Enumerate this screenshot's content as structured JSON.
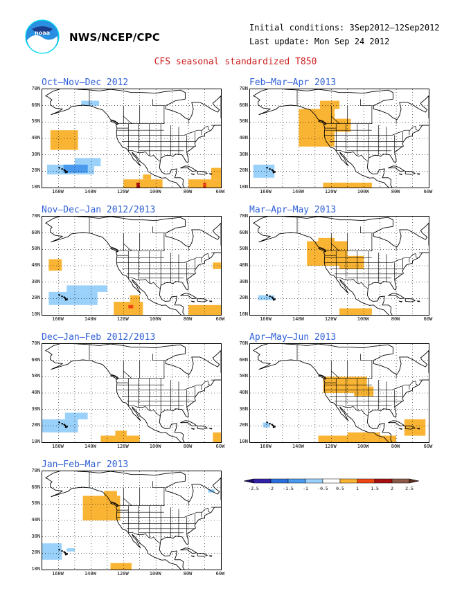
{
  "header": {
    "org": "NWS/NCEP/CPC",
    "initial_conditions": "Initial conditions: 3Sep2012–12Sep2012",
    "last_update": "Last update: Mon Sep 24 2012",
    "title": "CFS seasonal standardized T850",
    "logo_icon": "noaa-logo-icon",
    "title_color": "#cc2222",
    "panel_title_color": "#3060d8"
  },
  "axes": {
    "lat_labels": [
      "70N",
      "60N",
      "50N",
      "40N",
      "30N",
      "20N",
      "10N"
    ],
    "lon_labels": [
      "160W",
      "140W",
      "120W",
      "100W",
      "80W",
      "60W"
    ],
    "lon_range": [
      -170,
      -60
    ],
    "lat_range": [
      10,
      70
    ]
  },
  "panels": [
    {
      "title": "Oct–Nov–Dec 2012",
      "anoms": [
        {
          "lon": [
            -165,
            -148
          ],
          "lat": [
            33,
            45
          ],
          "level": 1
        },
        {
          "lon": [
            -167,
            -138
          ],
          "lat": [
            18,
            24
          ],
          "level": -1
        },
        {
          "lon": [
            -150,
            -134
          ],
          "lat": [
            23,
            28
          ],
          "level": -1
        },
        {
          "lon": [
            -157,
            -142
          ],
          "lat": [
            19,
            24
          ],
          "level": -1.5
        },
        {
          "lon": [
            -120,
            -96
          ],
          "lat": [
            10,
            15
          ],
          "level": 1
        },
        {
          "lon": [
            -108,
            -103
          ],
          "lat": [
            15,
            18
          ],
          "level": 1
        },
        {
          "lon": [
            -80,
            -60
          ],
          "lat": [
            10,
            15
          ],
          "level": 1
        },
        {
          "lon": [
            -66,
            -60
          ],
          "lat": [
            15,
            22
          ],
          "level": 1
        },
        {
          "lon": [
            -112,
            -110
          ],
          "lat": [
            10,
            13
          ],
          "level": 2
        },
        {
          "lon": [
            -71,
            -69
          ],
          "lat": [
            10,
            13
          ],
          "level": 1.5
        },
        {
          "lon": [
            -146,
            -135
          ],
          "lat": [
            60,
            63
          ],
          "level": -1
        }
      ]
    },
    {
      "title": "Feb–Mar–Apr 2013",
      "anoms": [
        {
          "lon": [
            -140,
            -118
          ],
          "lat": [
            35,
            58
          ],
          "level": 1
        },
        {
          "lon": [
            -127,
            -115
          ],
          "lat": [
            58,
            63
          ],
          "level": 1
        },
        {
          "lon": [
            -120,
            -108
          ],
          "lat": [
            44,
            52
          ],
          "level": 1
        },
        {
          "lon": [
            -168,
            -155
          ],
          "lat": [
            16,
            24
          ],
          "level": -1
        },
        {
          "lon": [
            -125,
            -95
          ],
          "lat": [
            10,
            13
          ],
          "level": 1
        }
      ]
    },
    {
      "title": "Nov–Dec–Jan 2012/2013",
      "anoms": [
        {
          "lon": [
            -166,
            -158
          ],
          "lat": [
            37,
            44
          ],
          "level": 1
        },
        {
          "lon": [
            -166,
            -136
          ],
          "lat": [
            16,
            24
          ],
          "level": -1
        },
        {
          "lon": [
            -155,
            -130
          ],
          "lat": [
            24,
            28
          ],
          "level": -1
        },
        {
          "lon": [
            -126,
            -108
          ],
          "lat": [
            10,
            18
          ],
          "level": 1
        },
        {
          "lon": [
            -116,
            -110
          ],
          "lat": [
            18,
            22
          ],
          "level": 1
        },
        {
          "lon": [
            -80,
            -60
          ],
          "lat": [
            10,
            16
          ],
          "level": 1
        },
        {
          "lon": [
            -65,
            -60
          ],
          "lat": [
            38,
            42
          ],
          "level": 1
        },
        {
          "lon": [
            -117,
            -114
          ],
          "lat": [
            14,
            16
          ],
          "level": 1.5
        }
      ]
    },
    {
      "title": "Mar–Apr–May 2013",
      "anoms": [
        {
          "lon": [
            -135,
            -110
          ],
          "lat": [
            40,
            55
          ],
          "level": 1
        },
        {
          "lon": [
            -115,
            -100
          ],
          "lat": [
            38,
            46
          ],
          "level": 1
        },
        {
          "lon": [
            -128,
            -118
          ],
          "lat": [
            54,
            57
          ],
          "level": 1
        },
        {
          "lon": [
            -165,
            -155
          ],
          "lat": [
            19,
            22
          ],
          "level": -1
        },
        {
          "lon": [
            -115,
            -95
          ],
          "lat": [
            10,
            14
          ],
          "level": 1
        }
      ]
    },
    {
      "title": "Dec–Jan–Feb 2012/2013",
      "anoms": [
        {
          "lon": [
            -170,
            -148
          ],
          "lat": [
            16,
            24
          ],
          "level": -1
        },
        {
          "lon": [
            -156,
            -142
          ],
          "lat": [
            24,
            28
          ],
          "level": -1
        },
        {
          "lon": [
            -134,
            -110
          ],
          "lat": [
            10,
            14
          ],
          "level": 1
        },
        {
          "lon": [
            -125,
            -118
          ],
          "lat": [
            14,
            17
          ],
          "level": 1
        },
        {
          "lon": [
            -65,
            -60
          ],
          "lat": [
            10,
            16
          ],
          "level": 1
        }
      ]
    },
    {
      "title": "Apr–May–Jun 2013",
      "anoms": [
        {
          "lon": [
            -125,
            -98
          ],
          "lat": [
            40,
            50
          ],
          "level": 1
        },
        {
          "lon": [
            -106,
            -94
          ],
          "lat": [
            38,
            44
          ],
          "level": 1
        },
        {
          "lon": [
            -128,
            -80
          ],
          "lat": [
            10,
            14
          ],
          "level": 1
        },
        {
          "lon": [
            -110,
            -90
          ],
          "lat": [
            14,
            16
          ],
          "level": 1
        },
        {
          "lon": [
            -75,
            -62
          ],
          "lat": [
            14,
            24
          ],
          "level": 1
        },
        {
          "lon": [
            -162,
            -158
          ],
          "lat": [
            19,
            22
          ],
          "level": -1
        }
      ]
    },
    {
      "title": "Jan–Feb–Mar 2013",
      "anoms": [
        {
          "lon": [
            -145,
            -122
          ],
          "lat": [
            40,
            55
          ],
          "level": 1
        },
        {
          "lon": [
            -132,
            -124
          ],
          "lat": [
            55,
            58
          ],
          "level": 1
        },
        {
          "lon": [
            -170,
            -158
          ],
          "lat": [
            16,
            26
          ],
          "level": -1
        },
        {
          "lon": [
            -155,
            -150
          ],
          "lat": [
            21,
            23
          ],
          "level": -1
        },
        {
          "lon": [
            -128,
            -115
          ],
          "lat": [
            10,
            14
          ],
          "level": 1
        },
        {
          "lon": [
            -68,
            -64
          ],
          "lat": [
            57,
            59
          ],
          "level": -1
        }
      ]
    }
  ],
  "colorbar": {
    "labels": [
      "-2.5",
      "-2",
      "-1.5",
      "-1",
      "-0.5",
      "0.5",
      "1",
      "1.5",
      "2",
      "2.5"
    ],
    "colors": [
      "#3222a8",
      "#2b6fdc",
      "#4a9bf0",
      "#9ad1fb",
      "#ffffff",
      "#f9b434",
      "#f04614",
      "#a81010",
      "#8c5a46"
    ],
    "end_low": "#190a64",
    "end_high": "#5a2a1e",
    "level_colors": {
      "-2.5": "#3222a8",
      "-2": "#2b6fdc",
      "-1.5": "#4a9bf0",
      "-1": "#9ad1fb",
      "1": "#f9b434",
      "1.5": "#f04614",
      "2": "#a81010",
      "2.5": "#8c5a46"
    }
  }
}
